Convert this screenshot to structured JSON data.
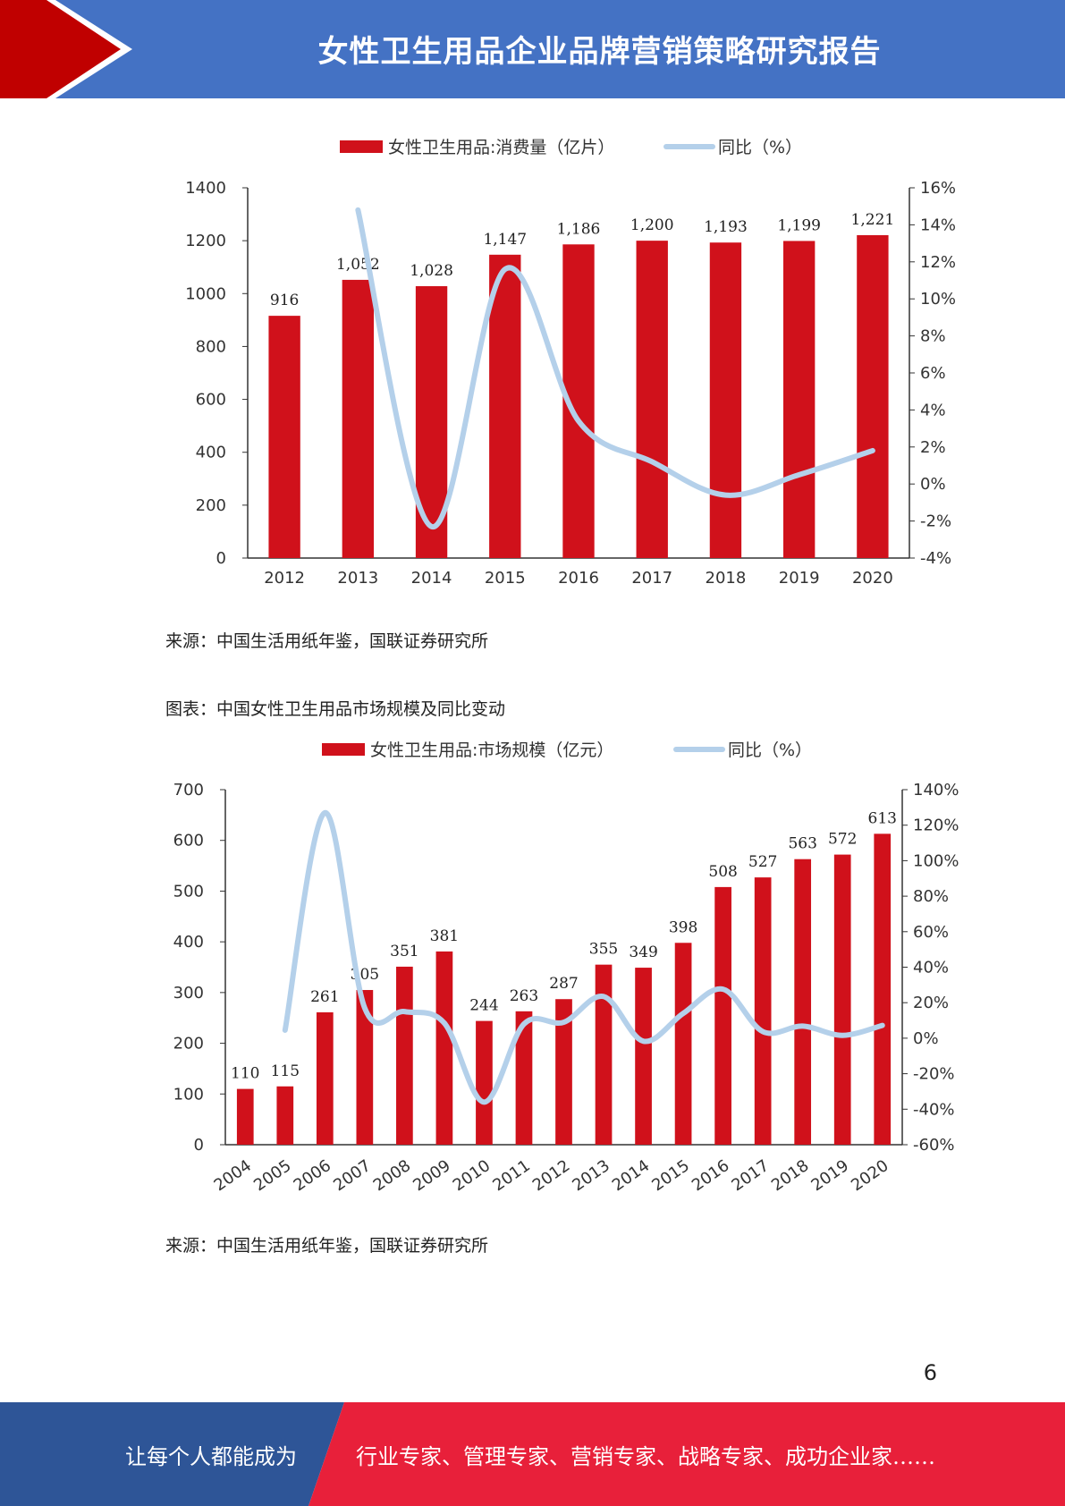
{
  "header": {
    "title": "女性卫生用品企业品牌营销策略研究报告"
  },
  "chart1_source": "来源：中国生活用纸年鉴，国联证券研究所",
  "chart2_caption": "图表：中国女性卫生用品市场规模及同比变动",
  "chart2_source": "来源：中国生活用纸年鉴，国联证券研究所",
  "page_number": "6",
  "footer": {
    "left": "让每个人都能成为",
    "right": "行业专家、管理专家、营销专家、战略专家、成功企业家……"
  },
  "colors": {
    "bar": "#d0111b",
    "line": "#b4d0ea",
    "header": "#4472c4",
    "header_chevron": "#c00000",
    "footer_left": "#2e5597",
    "footer_right": "#e8203a"
  },
  "chart_data": [
    {
      "type": "bar",
      "categories": [
        "2012",
        "2013",
        "2014",
        "2015",
        "2016",
        "2017",
        "2018",
        "2019",
        "2020"
      ],
      "series": [
        {
          "name": "女性卫生用品:消费量（亿片）",
          "type": "bar",
          "axis": "left",
          "values": [
            916,
            1052,
            1028,
            1147,
            1186,
            1200,
            1193,
            1199,
            1221
          ],
          "labels": [
            "916",
            "1,052",
            "1,028",
            "1,147",
            "1,186",
            "1,200",
            "1,193",
            "1,199",
            "1,221"
          ]
        },
        {
          "name": "同比（%）",
          "type": "line",
          "axis": "right",
          "values": [
            null,
            14.8,
            -2.3,
            11.6,
            3.4,
            1.2,
            -0.6,
            0.5,
            1.8
          ]
        }
      ],
      "ylim_left": [
        0,
        1400
      ],
      "yticks_left": [
        "0",
        "200",
        "400",
        "600",
        "800",
        "1000",
        "1200",
        "1400"
      ],
      "ylim_right": [
        -4,
        16
      ],
      "yticks_right": [
        "-4%",
        "-2%",
        "0%",
        "2%",
        "4%",
        "6%",
        "8%",
        "10%",
        "12%",
        "14%",
        "16%"
      ],
      "legend": "top"
    },
    {
      "type": "bar",
      "categories": [
        "2004",
        "2005",
        "2006",
        "2007",
        "2008",
        "2009",
        "2010",
        "2011",
        "2012",
        "2013",
        "2014",
        "2015",
        "2016",
        "2017",
        "2018",
        "2019",
        "2020"
      ],
      "series": [
        {
          "name": "女性卫生用品:市场规模（亿元）",
          "type": "bar",
          "axis": "left",
          "values": [
            110,
            115,
            261,
            305,
            351,
            381,
            244,
            263,
            287,
            355,
            349,
            398,
            508,
            527,
            563,
            572,
            613
          ],
          "labels": [
            "110",
            "115",
            "261",
            "305",
            "351",
            "381",
            "244",
            "263",
            "287",
            "355",
            "349",
            "398",
            "508",
            "527",
            "563",
            "572",
            "613"
          ]
        },
        {
          "name": "同比（%）",
          "type": "line",
          "axis": "right",
          "values": [
            null,
            4.5,
            127,
            17,
            15,
            8.5,
            -36,
            8,
            9,
            23.5,
            -1.7,
            14,
            27.6,
            3.7,
            6.8,
            1.6,
            7.2
          ]
        }
      ],
      "ylim_left": [
        0,
        700
      ],
      "yticks_left": [
        "0",
        "100",
        "200",
        "300",
        "400",
        "500",
        "600",
        "700"
      ],
      "ylim_right": [
        -60,
        140
      ],
      "yticks_right": [
        "-60%",
        "-40%",
        "-20%",
        "0%",
        "20%",
        "40%",
        "60%",
        "80%",
        "100%",
        "120%",
        "140%"
      ],
      "legend": "top"
    }
  ]
}
